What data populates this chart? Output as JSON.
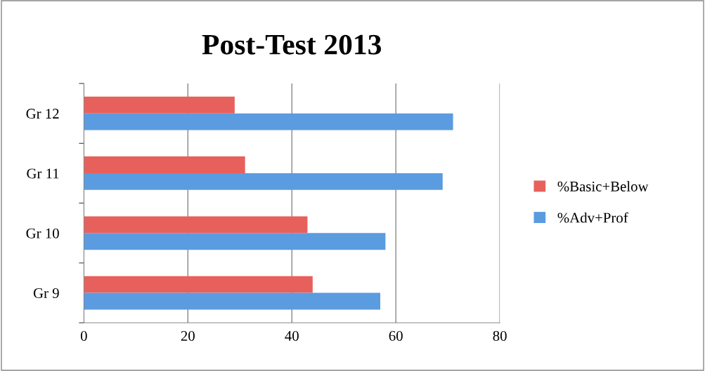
{
  "chart_data": {
    "type": "bar",
    "orientation": "horizontal",
    "title": "Post-Test 2013",
    "categories": [
      "Gr 12",
      "Gr 11",
      "Gr 10",
      "Gr 9"
    ],
    "series": [
      {
        "name": "%Basic+Below",
        "color": "#e8605c",
        "values": [
          29,
          31,
          43,
          44
        ]
      },
      {
        "name": "%Adv+Prof",
        "color": "#5b9be0",
        "values": [
          71,
          69,
          58,
          57
        ]
      }
    ],
    "xlim": [
      0,
      80
    ],
    "xticks": [
      0,
      20,
      40,
      60,
      80
    ],
    "grid": "x",
    "legend": "right"
  }
}
